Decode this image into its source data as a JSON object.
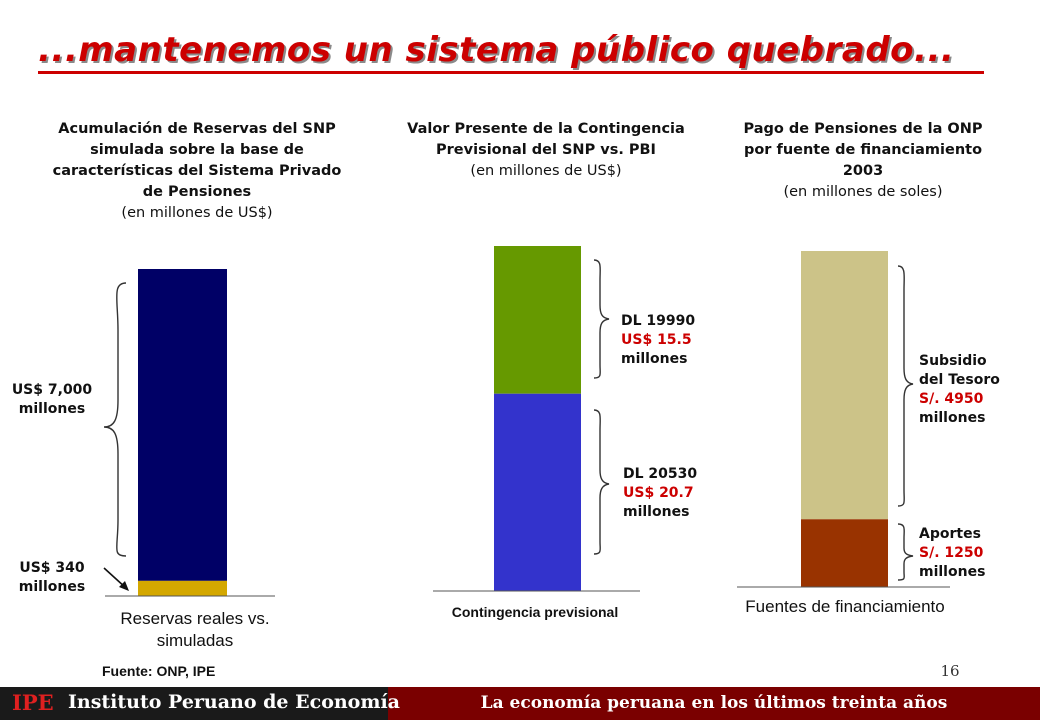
{
  "slide": {
    "title": "...mantenemos un sistema público quebrado...",
    "page_number": "16",
    "source": "Fuente: ONP, IPE"
  },
  "footer": {
    "brand": "IPE",
    "institution": "Instituto Peruano de Economía",
    "tagline": "La economía peruana en los últimos treinta años"
  },
  "colors": {
    "title_red": "#cc0000",
    "navy": "#000066",
    "gold": "#d4a800",
    "green": "#669900",
    "blue": "#3333cc",
    "tan": "#ccc388",
    "brown": "#993300",
    "footer_dark": "#1a1a1a",
    "footer_red": "#7a0000"
  },
  "chart_data": [
    {
      "type": "bar",
      "stacked": true,
      "title": "Acumulación de Reservas del SNP simulada sobre la base de características del Sistema Privado de Pensiones",
      "subtitle": "(en millones de US$)",
      "categories": [
        "Reservas reales vs. simuladas"
      ],
      "series": [
        {
          "values": [
            340
          ],
          "color": "#d4a800"
        },
        {
          "values": [
            7000
          ],
          "color": "#000066"
        }
      ],
      "annotations": [
        {
          "text": "US$ 340 millones"
        },
        {
          "text": "US$ 7,000 millones"
        }
      ]
    },
    {
      "type": "bar",
      "stacked": true,
      "title": "Valor Presente de la Contingencia Previsional del SNP vs. PBI",
      "subtitle": "(en millones de US$)",
      "categories": [
        "Contingencia previsional"
      ],
      "series": [
        {
          "name": "DL 20530",
          "values": [
            20.7
          ],
          "color": "#3333cc"
        },
        {
          "name": "DL 19990",
          "values": [
            15.5
          ],
          "color": "#669900"
        }
      ],
      "annotations": [
        {
          "name": "DL 19990",
          "value_text": "US$ 15.5",
          "unit": "millones"
        },
        {
          "name": "DL 20530",
          "value_text": "US$ 20.7",
          "unit": "millones"
        }
      ]
    },
    {
      "type": "bar",
      "stacked": true,
      "title": "Pago de Pensiones de la ONP por fuente de financiamiento 2003",
      "subtitle": "(en millones de soles)",
      "categories": [
        "Fuentes de financiamiento"
      ],
      "series": [
        {
          "name": "Aportes",
          "values": [
            1250
          ],
          "color": "#993300"
        },
        {
          "name": "Subsidio del Tesoro",
          "values": [
            4950
          ],
          "color": "#ccc388"
        }
      ],
      "annotations": [
        {
          "name_lines": [
            "Subsidio",
            "del Tesoro"
          ],
          "value_text": "S/. 4950",
          "unit": "millones"
        },
        {
          "name_lines": [
            "Aportes"
          ],
          "value_text": "S/. 1250",
          "unit": "millones"
        }
      ]
    }
  ]
}
